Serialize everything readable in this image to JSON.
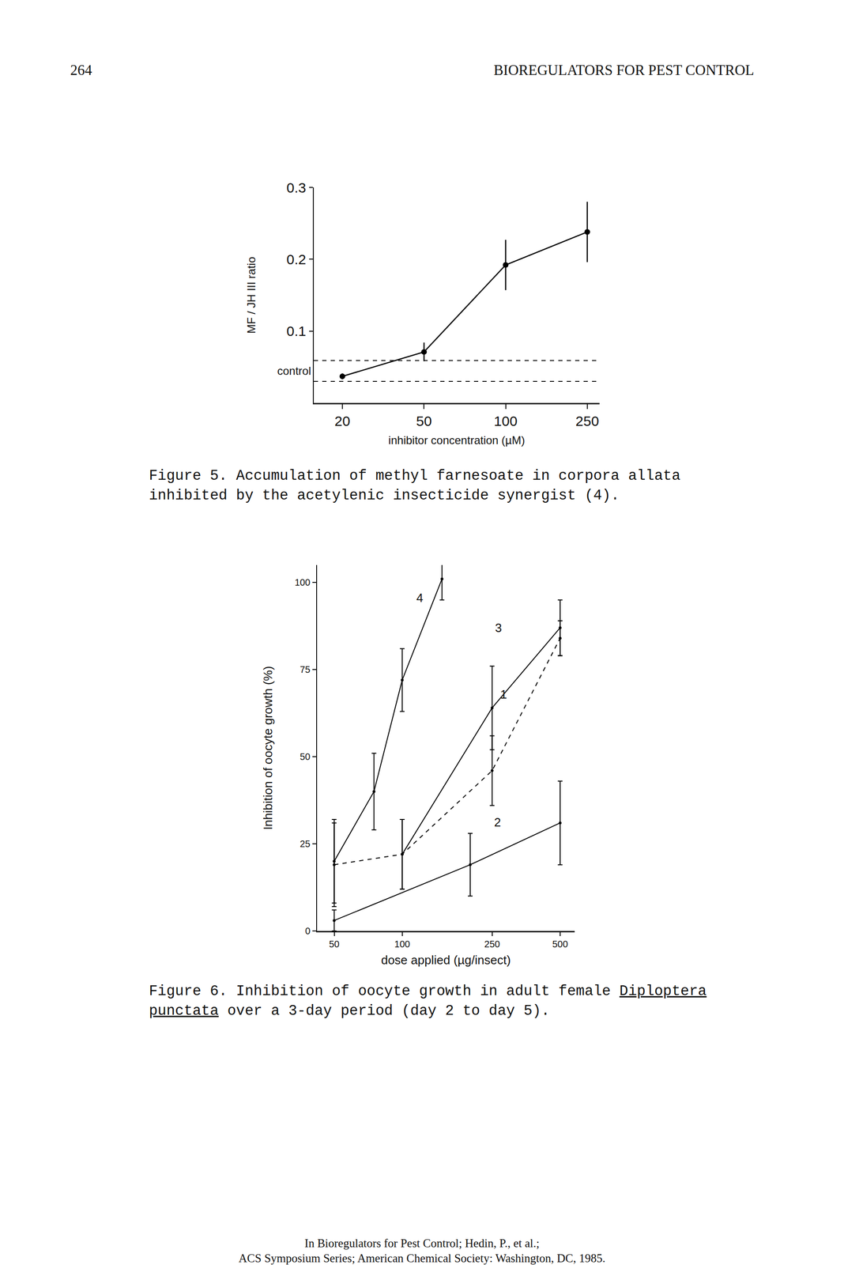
{
  "page": {
    "header_left": "264",
    "header_right": "BIOREGULATORS FOR PEST CONTROL",
    "captions": [
      [
        {
          "text": "Figure 5.  Accumulation of methyl farnesoate in corpora allata inhibited by the acetylenic insecticide synergist (4)."
        }
      ],
      [
        {
          "text": "Figure 6.  Inhibition of oocyte growth in adult female "
        },
        {
          "text": "Diploptera punctata",
          "underline": true
        },
        {
          "text": " over a 3-day period (day 2 to day 5)."
        }
      ]
    ],
    "footer": [
      "In Bioregulators for Pest Control; Hedin, P., et al.;",
      "ACS Symposium Series; American Chemical Society: Washington, DC, 1985."
    ]
  },
  "chart_data": [
    {
      "type": "line",
      "x_label": "inhibitor concentration (µM)",
      "y_label": "MF / JH III ratio",
      "categories": [
        "20",
        "50",
        "100",
        "250"
      ],
      "values": [
        0.037,
        0.071,
        0.192,
        0.238
      ],
      "errors": [
        0.004,
        0.013,
        0.035,
        0.042
      ],
      "color": "#000000",
      "marker": "circle",
      "line_style": "solid",
      "ylim": [
        0,
        0.3
      ],
      "yticks": [
        0.1,
        0.2,
        0.3
      ],
      "grid": false,
      "control_label": "control",
      "control_band": [
        0.03,
        0.059
      ]
    },
    {
      "type": "line",
      "x_label": "dose applied (µg/insect)",
      "y_label": "Inhibition of oocyte growth (%)",
      "log": "x",
      "xlim": [
        42,
        580
      ],
      "xticks": [
        50,
        100,
        250,
        500
      ],
      "ylim": [
        0,
        105
      ],
      "yticks": [
        0,
        25,
        50,
        75,
        100
      ],
      "grid": false,
      "series": [
        {
          "name": "4",
          "color": "#000000",
          "line_style": "solid",
          "marker": "circle",
          "x": [
            50,
            75,
            100,
            150
          ],
          "values": [
            20,
            40,
            72,
            101
          ],
          "errors": [
            12,
            11,
            9,
            6
          ]
        },
        {
          "name": "3",
          "color": "#000000",
          "line_style": "solid",
          "marker": "circle",
          "x": [
            100,
            250,
            500
          ],
          "values": [
            22,
            64,
            87
          ],
          "errors": [
            10,
            12,
            8
          ]
        },
        {
          "name": "1",
          "color": "#000000",
          "line_style": "dashed",
          "marker": "circle",
          "x": [
            50,
            100,
            250,
            500
          ],
          "values": [
            19,
            22,
            46,
            84
          ],
          "errors": [
            12,
            10,
            10,
            5
          ]
        },
        {
          "name": "2",
          "color": "#000000",
          "line_style": "solid",
          "marker": "circle",
          "x": [
            50,
            200,
            500
          ],
          "values": [
            3,
            19,
            31
          ],
          "errors": [
            3,
            9,
            12
          ]
        }
      ]
    }
  ]
}
